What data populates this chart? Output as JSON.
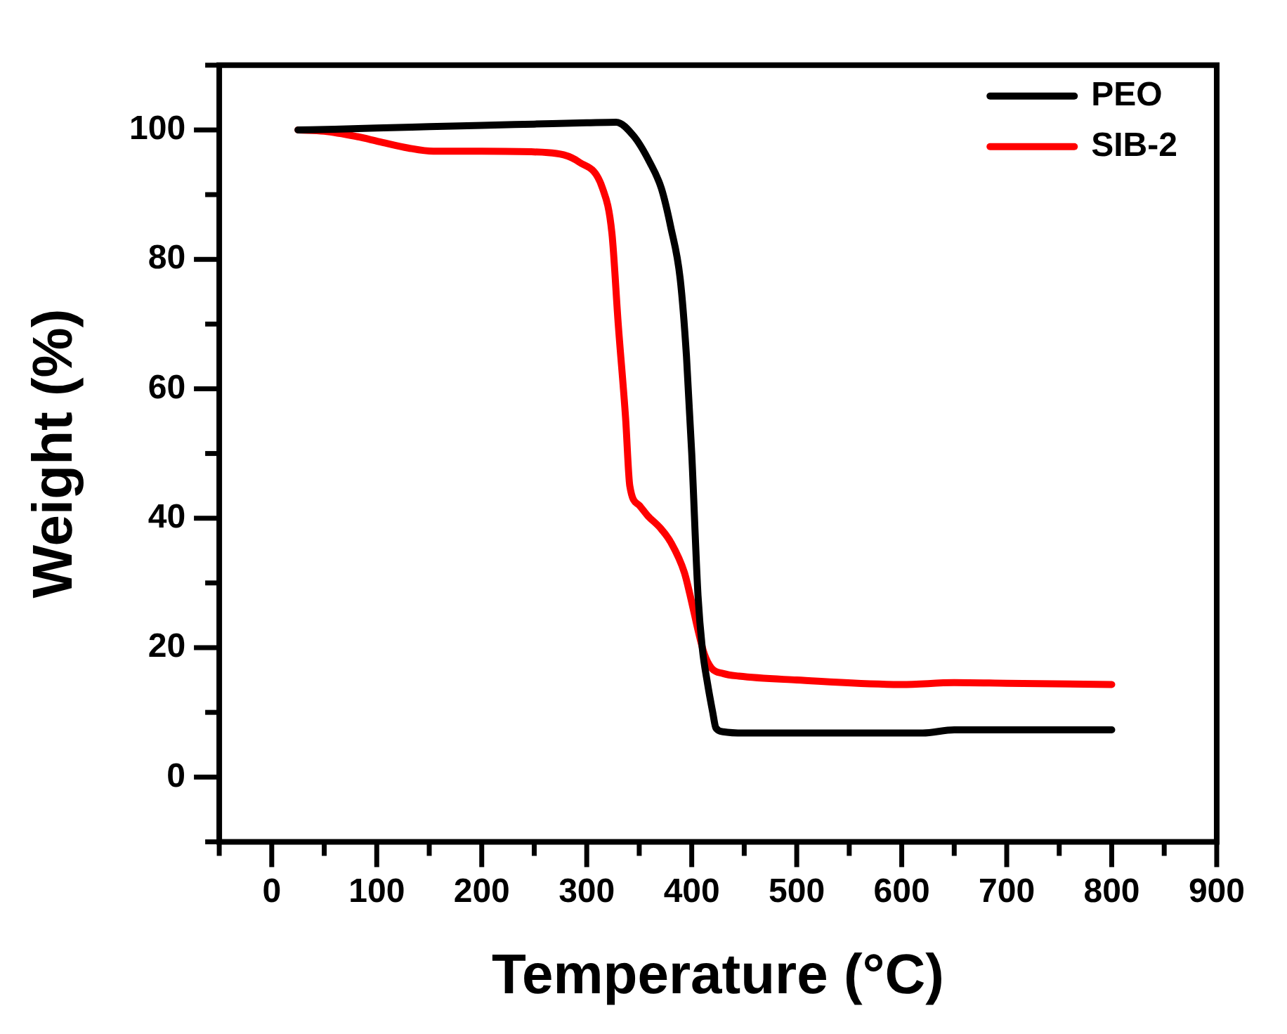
{
  "chart_data": {
    "type": "line",
    "xlabel": "Temperature (°C)",
    "ylabel": "Weight (%)",
    "xlim": [
      -50,
      900
    ],
    "xticks": [
      0,
      100,
      200,
      300,
      400,
      500,
      600,
      700,
      800,
      900
    ],
    "ylim": [
      -10,
      110
    ],
    "yticks": [
      0,
      20,
      40,
      60,
      80,
      100
    ],
    "grid": false,
    "legend": "top right",
    "marker": "none",
    "line_style": "solid",
    "series": [
      {
        "name": "PEO",
        "color": "#000000",
        "x": [
          25,
          60,
          100,
          150,
          200,
          250,
          300,
          328,
          345,
          360,
          371,
          380,
          389,
          395,
          400,
          406,
          410,
          415,
          420,
          423,
          430,
          450,
          500,
          550,
          620,
          650,
          700,
          800
        ],
        "values": [
          100,
          100.1,
          100.3,
          100.5,
          100.7,
          100.9,
          101.1,
          101.2,
          99,
          95,
          91,
          85,
          77,
          65,
          50,
          28,
          20,
          14.5,
          10,
          7.6,
          7,
          6.8,
          6.8,
          6.8,
          6.8,
          7.3,
          7.3,
          7.3
        ]
      },
      {
        "name": "SIB-2",
        "color": "#ff0000",
        "x": [
          25,
          50,
          80,
          102,
          130,
          154,
          200,
          263,
          293,
          315,
          324,
          330,
          337,
          341,
          350,
          358,
          370,
          380,
          393,
          400,
          406,
          412,
          419,
          430,
          445,
          500,
          600,
          650,
          700,
          800
        ],
        "values": [
          100,
          99.8,
          99,
          98.2,
          97.2,
          96.7,
          96.7,
          96.5,
          95,
          91,
          84,
          70,
          55.5,
          45,
          42,
          40.4,
          38.5,
          36.3,
          31.6,
          27,
          22.7,
          19,
          16.8,
          16,
          15.6,
          15,
          14.3,
          14.6,
          14.5,
          14.3
        ]
      }
    ]
  }
}
